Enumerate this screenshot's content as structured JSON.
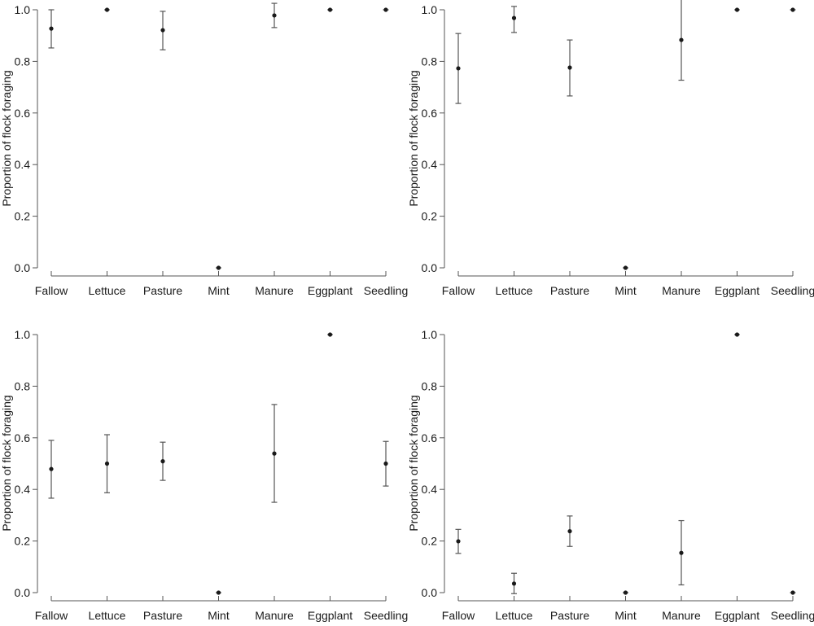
{
  "chart_data": [
    {
      "type": "scatter",
      "panel": "top-left",
      "ylabel": "Proportion of flock foraging",
      "categories": [
        "Fallow",
        "Lettuce",
        "Pasture",
        "Mint",
        "Manure",
        "Eggplant",
        "Seedling"
      ],
      "yticks": [
        "0.0",
        "0.2",
        "0.4",
        "0.6",
        "0.8",
        "1.0"
      ],
      "ylim": [
        0,
        1
      ],
      "values": [
        0.927,
        1.0,
        0.921,
        0.0,
        0.978,
        1.0,
        1.0
      ],
      "err_upper": [
        1.0,
        1.0,
        0.994,
        0.0,
        1.025,
        1.0,
        1.0
      ],
      "err_lower": [
        0.852,
        1.0,
        0.845,
        0.0,
        0.931,
        1.0,
        1.0
      ]
    },
    {
      "type": "scatter",
      "panel": "top-right",
      "ylabel": "Proportion of flock foraging",
      "categories": [
        "Fallow",
        "Lettuce",
        "Pasture",
        "Mint",
        "Manure",
        "Eggplant",
        "Seedling"
      ],
      "yticks": [
        "0.0",
        "0.2",
        "0.4",
        "0.6",
        "0.8",
        "1.0"
      ],
      "ylim": [
        0,
        1
      ],
      "values": [
        0.773,
        0.968,
        0.776,
        0.0,
        0.883,
        1.0,
        1.0
      ],
      "err_upper": [
        0.908,
        1.013,
        0.883,
        0.0,
        1.04,
        1.0,
        1.0
      ],
      "err_lower": [
        0.637,
        0.912,
        0.666,
        0.0,
        0.727,
        1.0,
        1.0
      ]
    },
    {
      "type": "scatter",
      "panel": "bottom-left",
      "ylabel": "Proportion of flock foraging",
      "categories": [
        "Fallow",
        "Lettuce",
        "Pasture",
        "Mint",
        "Manure",
        "Eggplant",
        "Seedling"
      ],
      "yticks": [
        "0.0",
        "0.2",
        "0.4",
        "0.6",
        "0.8",
        "1.0"
      ],
      "ylim": [
        0,
        1
      ],
      "values": [
        0.479,
        0.5,
        0.509,
        0.0,
        0.539,
        1.0,
        0.5
      ],
      "err_upper": [
        0.59,
        0.612,
        0.583,
        0.0,
        0.729,
        1.0,
        0.586
      ],
      "err_lower": [
        0.366,
        0.387,
        0.435,
        0.0,
        0.35,
        1.0,
        0.413
      ]
    },
    {
      "type": "scatter",
      "panel": "bottom-right",
      "ylabel": "Proportion of flock foraging",
      "categories": [
        "Fallow",
        "Lettuce",
        "Pasture",
        "Mint",
        "Manure",
        "Eggplant",
        "Seedling"
      ],
      "yticks": [
        "0.0",
        "0.2",
        "0.4",
        "0.6",
        "0.8",
        "1.0"
      ],
      "ylim": [
        0,
        1
      ],
      "values": [
        0.199,
        0.035,
        0.238,
        0.0,
        0.154,
        1.0,
        0.0
      ],
      "err_upper": [
        0.245,
        0.075,
        0.297,
        0.0,
        0.279,
        1.0,
        0.0
      ],
      "err_lower": [
        0.152,
        -0.004,
        0.179,
        0.0,
        0.03,
        1.0,
        0.0
      ]
    }
  ],
  "colors": {
    "point": "#1a1a1a",
    "errorbar": "#555555",
    "axis": "#555555"
  }
}
